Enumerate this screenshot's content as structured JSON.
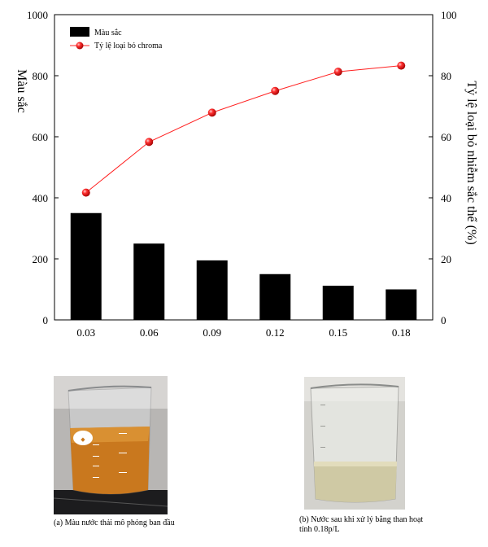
{
  "chart_data": {
    "type": "bar+line",
    "categories": [
      "0.03",
      "0.06",
      "0.09",
      "0.12",
      "0.15",
      "0.18"
    ],
    "series": [
      {
        "name": "Màu sắc",
        "type": "bar",
        "axis": "left",
        "values": [
          350,
          250,
          195,
          150,
          112,
          100
        ]
      },
      {
        "name": "Tỷ lệ loại bỏ chroma",
        "type": "line",
        "axis": "right",
        "values": [
          41.7,
          58.3,
          67.9,
          75.0,
          81.3,
          83.3
        ]
      }
    ],
    "ylabel": "Màu sắc",
    "y2label": "Tỷ lệ loại bỏ nhiễm sắc thể (%)",
    "ylim": [
      0,
      1000
    ],
    "y2lim": [
      0,
      100
    ],
    "yticks": [
      "0",
      "200",
      "400",
      "600",
      "800",
      "1000"
    ],
    "y2ticks": [
      "0",
      "20",
      "40",
      "60",
      "80",
      "100"
    ],
    "legend_position": "top-left",
    "colors": {
      "bar": "#000000",
      "line": "#ff2020",
      "marker": "#e8141e"
    }
  },
  "figure": {
    "captions": [
      "(a) Màu nước thải mô phỏng ban đầu",
      "(b) Nước sau khi xử lý bằng than hoạt tính 0.18p/L"
    ]
  }
}
